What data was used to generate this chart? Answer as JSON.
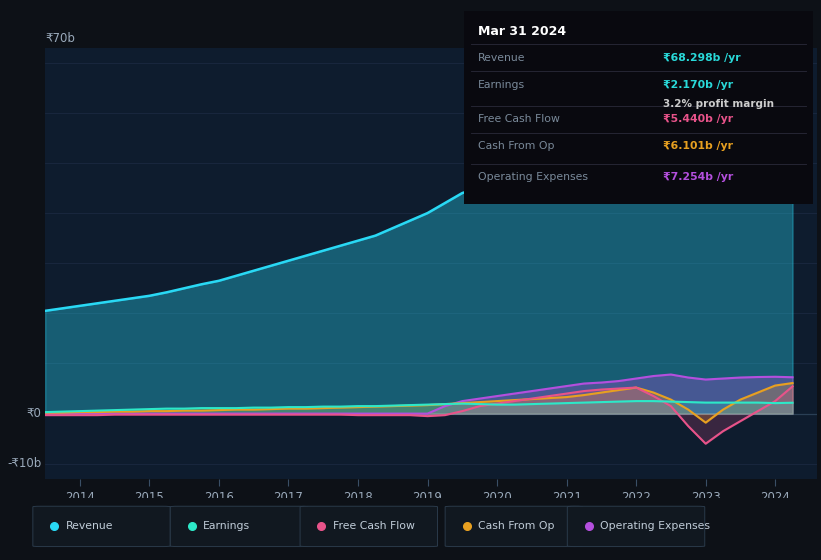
{
  "bg_color": "#0d1117",
  "plot_bg_color": "#0e1c2e",
  "grid_color": "#1a2840",
  "title_box": {
    "date": "Mar 31 2024",
    "rows": [
      {
        "label": "Revenue",
        "value": "₹68.298b /yr",
        "value_color": "#29d9d9",
        "extra": null
      },
      {
        "label": "Earnings",
        "value": "₹2.170b /yr",
        "value_color": "#29d9d9",
        "extra": "3.2% profit margin"
      },
      {
        "label": "Free Cash Flow",
        "value": "₹5.440b /yr",
        "value_color": "#e8538a",
        "extra": null
      },
      {
        "label": "Cash From Op",
        "value": "₹6.101b /yr",
        "value_color": "#e8a020",
        "extra": null
      },
      {
        "label": "Operating Expenses",
        "value": "₹7.254b /yr",
        "value_color": "#b44fde",
        "extra": null
      }
    ]
  },
  "years": [
    2013.5,
    2013.75,
    2014.0,
    2014.25,
    2014.5,
    2014.75,
    2015.0,
    2015.25,
    2015.5,
    2015.75,
    2016.0,
    2016.25,
    2016.5,
    2016.75,
    2017.0,
    2017.25,
    2017.5,
    2017.75,
    2018.0,
    2018.25,
    2018.5,
    2018.75,
    2019.0,
    2019.25,
    2019.5,
    2019.75,
    2020.0,
    2020.25,
    2020.5,
    2020.75,
    2021.0,
    2021.25,
    2021.5,
    2021.75,
    2022.0,
    2022.25,
    2022.5,
    2022.75,
    2023.0,
    2023.25,
    2023.5,
    2023.75,
    2024.0,
    2024.25
  ],
  "revenue": [
    20.5,
    21.0,
    21.5,
    22.0,
    22.5,
    23.0,
    23.5,
    24.2,
    25.0,
    25.8,
    26.5,
    27.5,
    28.5,
    29.5,
    30.5,
    31.5,
    32.5,
    33.5,
    34.5,
    35.5,
    37.0,
    38.5,
    40.0,
    42.0,
    44.0,
    45.0,
    44.5,
    43.0,
    46.0,
    48.5,
    50.5,
    52.5,
    54.5,
    56.5,
    60.0,
    63.5,
    66.5,
    62.0,
    59.5,
    62.0,
    64.5,
    66.0,
    67.5,
    68.3
  ],
  "earnings": [
    0.3,
    0.4,
    0.5,
    0.6,
    0.7,
    0.8,
    0.9,
    1.0,
    1.0,
    1.1,
    1.1,
    1.1,
    1.2,
    1.2,
    1.3,
    1.3,
    1.4,
    1.4,
    1.5,
    1.5,
    1.6,
    1.7,
    1.8,
    1.9,
    2.0,
    1.9,
    1.8,
    1.8,
    1.9,
    2.0,
    2.1,
    2.2,
    2.3,
    2.4,
    2.5,
    2.5,
    2.4,
    2.3,
    2.2,
    2.2,
    2.2,
    2.2,
    2.1,
    2.17
  ],
  "free_cash_flow": [
    -0.3,
    -0.3,
    -0.3,
    -0.3,
    -0.2,
    -0.2,
    -0.2,
    -0.2,
    -0.2,
    -0.2,
    -0.2,
    -0.2,
    -0.2,
    -0.2,
    -0.2,
    -0.2,
    -0.2,
    -0.2,
    -0.3,
    -0.3,
    -0.3,
    -0.3,
    -0.5,
    -0.3,
    0.5,
    1.5,
    2.0,
    2.5,
    3.0,
    3.5,
    4.0,
    4.5,
    4.8,
    5.0,
    5.2,
    3.5,
    1.5,
    -2.5,
    -6.0,
    -3.5,
    -1.5,
    0.5,
    2.5,
    5.44
  ],
  "cash_from_op": [
    0.2,
    0.2,
    0.3,
    0.3,
    0.4,
    0.4,
    0.5,
    0.5,
    0.6,
    0.6,
    0.7,
    0.8,
    0.8,
    0.9,
    1.0,
    1.0,
    1.1,
    1.2,
    1.3,
    1.4,
    1.5,
    1.6,
    1.7,
    1.9,
    2.1,
    2.3,
    2.5,
    2.7,
    2.9,
    3.1,
    3.3,
    3.7,
    4.2,
    4.7,
    5.2,
    4.2,
    2.8,
    0.8,
    -1.8,
    0.8,
    2.8,
    4.2,
    5.6,
    6.1
  ],
  "operating_expenses": [
    0.0,
    0.0,
    0.0,
    0.0,
    0.0,
    0.0,
    0.0,
    0.0,
    0.0,
    0.0,
    0.0,
    0.0,
    0.0,
    0.0,
    0.0,
    0.0,
    0.0,
    0.0,
    0.0,
    0.0,
    0.0,
    0.0,
    0.0,
    1.5,
    2.5,
    3.0,
    3.5,
    4.0,
    4.5,
    5.0,
    5.5,
    6.0,
    6.2,
    6.5,
    7.0,
    7.5,
    7.8,
    7.2,
    6.8,
    7.0,
    7.2,
    7.3,
    7.35,
    7.254
  ],
  "revenue_color": "#29d9f5",
  "earnings_color": "#2de8c8",
  "free_cash_flow_color": "#e8538a",
  "cash_from_op_color": "#e8a020",
  "operating_expenses_color": "#b44fde",
  "ylim": [
    -13,
    73
  ],
  "xlim": [
    2013.5,
    2024.6
  ],
  "xticks": [
    2014,
    2015,
    2016,
    2017,
    2018,
    2019,
    2020,
    2021,
    2022,
    2023,
    2024
  ],
  "legend_items": [
    {
      "label": "Revenue",
      "color": "#29d9f5"
    },
    {
      "label": "Earnings",
      "color": "#2de8c8"
    },
    {
      "label": "Free Cash Flow",
      "color": "#e8538a"
    },
    {
      "label": "Cash From Op",
      "color": "#e8a020"
    },
    {
      "label": "Operating Expenses",
      "color": "#b44fde"
    }
  ]
}
